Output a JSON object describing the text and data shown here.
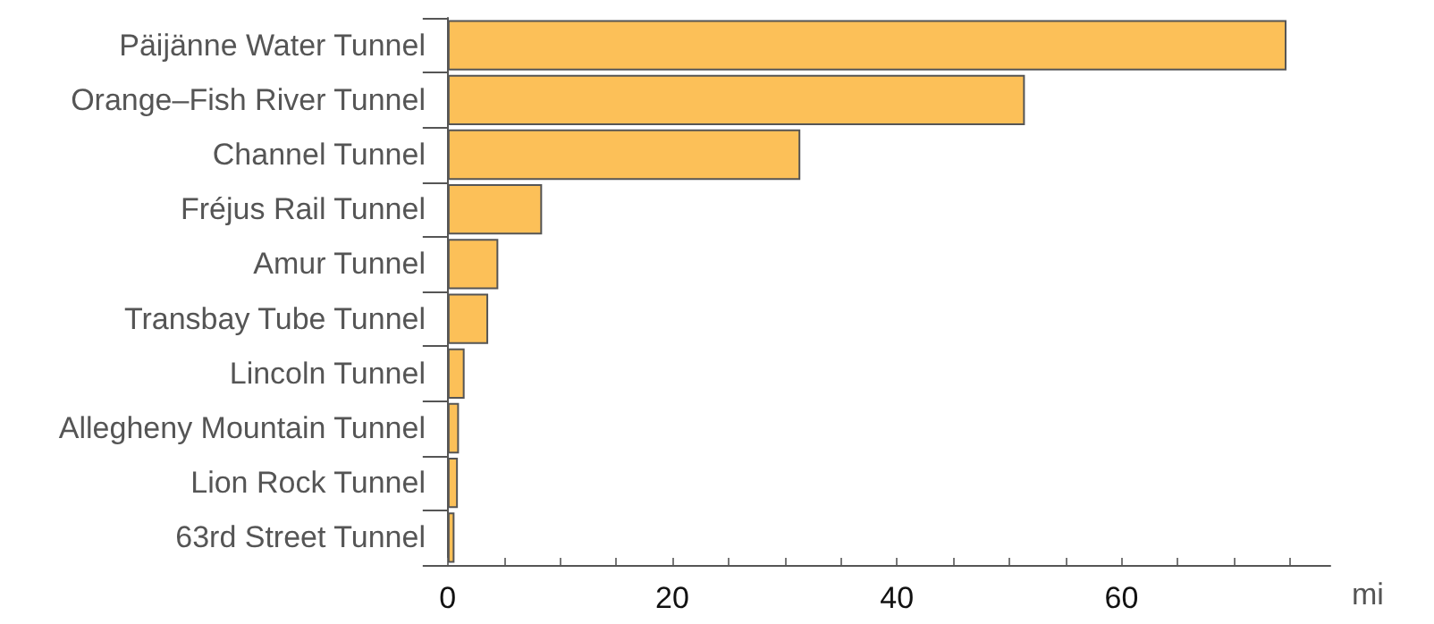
{
  "chart_data": {
    "type": "bar",
    "orientation": "horizontal",
    "xlabel": "mi",
    "categories": [
      "Päijänne Water Tunnel",
      "Orange–Fish River Tunnel",
      "Channel Tunnel",
      "Fréjus Rail Tunnel",
      "Amur Tunnel",
      "Transbay Tube Tunnel",
      "Lincoln Tunnel",
      "Allegheny Mountain Tunnel",
      "Lion Rock Tunnel",
      "63rd Street Tunnel"
    ],
    "values": [
      74.7,
      51.4,
      31.4,
      8.4,
      4.5,
      3.6,
      1.5,
      1.0,
      0.9,
      0.6
    ],
    "color": "#fcc058",
    "xlim": [
      -1.5,
      78.6
    ],
    "xticks": [
      0,
      {
        "value": 5,
        "label": null
      },
      {
        "value": 10,
        "label": null
      },
      {
        "value": 15,
        "label": null
      },
      20,
      {
        "value": 25,
        "label": null
      },
      {
        "value": 30,
        "label": null
      },
      {
        "value": 35,
        "label": null
      },
      40,
      {
        "value": 45,
        "label": null
      },
      {
        "value": 50,
        "label": null
      },
      {
        "value": 55,
        "label": null
      },
      60,
      {
        "value": 65,
        "label": null
      },
      {
        "value": 70,
        "label": null
      },
      {
        "value": 75,
        "label": null
      }
    ],
    "data_labels": false
  }
}
